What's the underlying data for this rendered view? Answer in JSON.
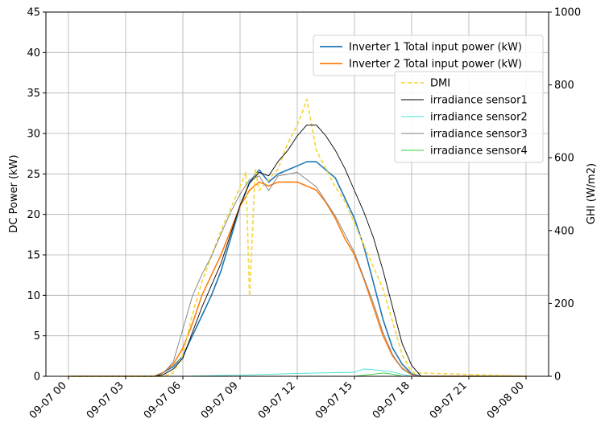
{
  "chart_data": {
    "type": "line",
    "x_range": [
      "09-07 00",
      "09-08 00"
    ],
    "x_ticks": [
      "09-07 00",
      "09-07 03",
      "09-07 06",
      "09-07 09",
      "09-07 12",
      "09-07 15",
      "09-07 18",
      "09-07 21",
      "09-08 00"
    ],
    "left_axis": {
      "label": "DC Power (kW)",
      "ylim": [
        0,
        45
      ],
      "ticks": [
        0,
        5,
        10,
        15,
        20,
        25,
        30,
        35,
        40,
        45
      ]
    },
    "right_axis": {
      "label": "GHI (W/m2)",
      "ylim": [
        0,
        1000
      ],
      "ticks": [
        0,
        200,
        400,
        600,
        800,
        1000
      ]
    },
    "grid": true,
    "legends": [
      {
        "placement": "top-right",
        "entries": [
          "Inverter 1 Total input power (kW)",
          "Inverter 2 Total input power (kW)"
        ]
      },
      {
        "placement": "upper-right",
        "entries": [
          "DMI",
          "irradiance sensor1",
          "irradiance sensor2",
          "irradiance sensor3",
          "irradiance sensor4"
        ]
      }
    ],
    "series": [
      {
        "name": "Inverter 1 Total input power (kW)",
        "axis": "left",
        "color": "#1f77b4",
        "style": "solid",
        "x_hours": [
          0,
          4.5,
          5,
          5.5,
          6,
          6.5,
          7,
          7.5,
          8,
          8.5,
          9,
          9.5,
          10,
          10.5,
          11,
          11.5,
          12,
          12.5,
          13,
          13.5,
          14,
          14.5,
          15,
          15.5,
          16,
          16.5,
          17,
          17.5,
          18,
          18.5,
          24
        ],
        "values": [
          0,
          0,
          0.5,
          1.2,
          2.5,
          5,
          7.5,
          10,
          13,
          17,
          21,
          24,
          25.5,
          24,
          25,
          25.5,
          26,
          26.5,
          26.5,
          25.5,
          24.5,
          22,
          19.5,
          16,
          11.5,
          7,
          3.5,
          1.5,
          0.3,
          0,
          0
        ]
      },
      {
        "name": "Inverter 2 Total input power (kW)",
        "axis": "left",
        "color": "#ff7f0e",
        "style": "solid",
        "x_hours": [
          0,
          4.5,
          5,
          5.5,
          6,
          6.5,
          7,
          7.5,
          8,
          8.5,
          9,
          9.5,
          10,
          10.5,
          11,
          11.5,
          12,
          12.5,
          13,
          13.5,
          14,
          14.5,
          15,
          15.5,
          16,
          16.5,
          17,
          17.5,
          18,
          18.5,
          24
        ],
        "values": [
          0,
          0,
          0.5,
          1.5,
          3.5,
          6.5,
          10,
          12.5,
          15,
          18,
          21,
          23,
          24,
          23.5,
          24,
          24,
          24,
          23.5,
          23,
          21.5,
          19.5,
          17,
          15,
          12,
          8.5,
          5,
          2.5,
          1,
          0.2,
          0,
          0
        ]
      },
      {
        "name": "DMI",
        "axis": "right",
        "color": "#f5d94a",
        "style": "dashed",
        "x_hours": [
          0,
          5,
          5.5,
          6,
          6.5,
          7,
          7.5,
          8,
          8.5,
          9,
          9.3,
          9.5,
          9.8,
          10,
          10.5,
          11,
          11.5,
          12,
          12.3,
          12.5,
          13,
          13.5,
          14,
          14.5,
          15,
          15.5,
          16,
          16.5,
          17,
          17.5,
          18,
          24
        ],
        "values": [
          0,
          0,
          10,
          60,
          170,
          260,
          330,
          400,
          460,
          520,
          560,
          220,
          570,
          510,
          540,
          570,
          640,
          690,
          730,
          760,
          620,
          570,
          520,
          480,
          420,
          360,
          300,
          240,
          150,
          60,
          10,
          0
        ]
      },
      {
        "name": "irradiance sensor1",
        "axis": "right",
        "color": "#000000",
        "style": "solid",
        "x_hours": [
          0,
          4.5,
          5,
          5.5,
          6,
          6.5,
          7,
          7.5,
          8,
          8.5,
          9,
          9.5,
          10,
          10.5,
          11,
          11.5,
          12,
          12.5,
          13,
          13.5,
          14,
          14.5,
          15,
          15.5,
          16,
          16.5,
          17,
          17.5,
          18,
          18.5,
          24
        ],
        "values": [
          0,
          0,
          5,
          20,
          50,
          120,
          190,
          250,
          310,
          390,
          470,
          530,
          560,
          550,
          590,
          620,
          660,
          690,
          690,
          660,
          620,
          570,
          510,
          450,
          380,
          290,
          190,
          90,
          30,
          0,
          0
        ]
      },
      {
        "name": "irradiance sensor2",
        "axis": "right",
        "color": "#40e0d0",
        "style": "solid",
        "x_hours": [
          0,
          6,
          9,
          12,
          13,
          14,
          15,
          15.5,
          16,
          16.5,
          17,
          17.5,
          18,
          24
        ],
        "values": [
          0,
          0,
          3,
          8,
          9,
          10,
          11,
          20,
          18,
          15,
          12,
          5,
          0,
          0
        ]
      },
      {
        "name": "irradiance sensor3",
        "axis": "right",
        "color": "#7f7f7f",
        "style": "solid",
        "x_hours": [
          0,
          4.5,
          5,
          5.5,
          6,
          6.5,
          7,
          7.5,
          8,
          8.5,
          9,
          9.5,
          10,
          10.5,
          11,
          11.5,
          12,
          12.5,
          13,
          13.5,
          14,
          14.5,
          15,
          15.5,
          16,
          16.5,
          17,
          17.5,
          18,
          18.5,
          24
        ],
        "values": [
          0,
          0,
          10,
          40,
          130,
          220,
          280,
          330,
          390,
          450,
          500,
          540,
          550,
          510,
          550,
          555,
          560,
          540,
          520,
          480,
          440,
          390,
          340,
          270,
          200,
          120,
          60,
          20,
          5,
          0,
          0
        ]
      },
      {
        "name": "irradiance sensor4",
        "axis": "right",
        "color": "#32cd32",
        "style": "solid",
        "x_hours": [
          0,
          15,
          16,
          16.5,
          17,
          17.5,
          24
        ],
        "values": [
          0,
          0,
          6,
          9,
          6,
          0,
          0
        ]
      }
    ]
  }
}
